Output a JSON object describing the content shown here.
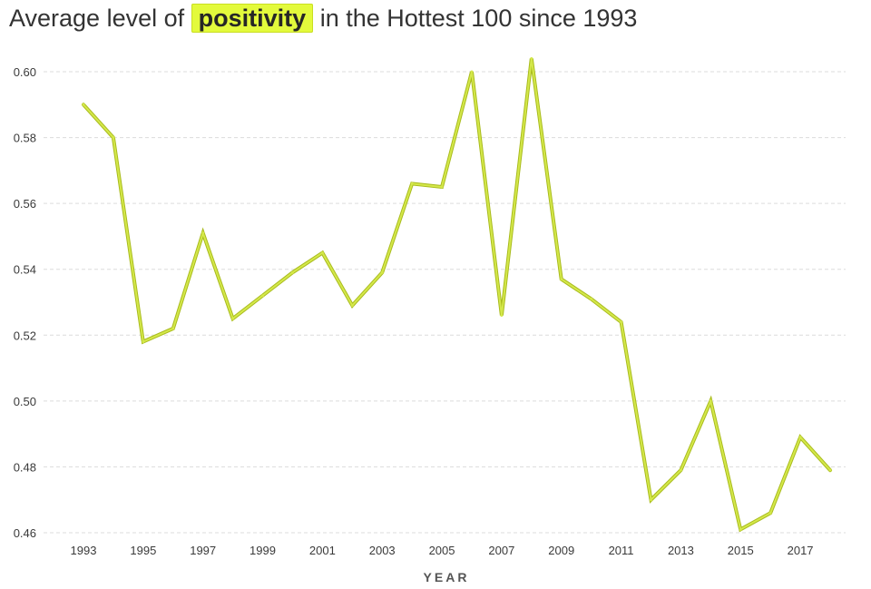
{
  "title": {
    "prefix": "Average level of",
    "highlight": "positivity",
    "suffix": "in the Hottest 100 since 1993"
  },
  "colors": {
    "line": "#d4e84a",
    "line_edge": "#a9bb1d",
    "highlight": "#e3fa3c",
    "grid": "#dcdcdc"
  },
  "chart_data": {
    "type": "line",
    "title": "Average level of positivity in the Hottest 100 since 1993",
    "xlabel": "YEAR",
    "ylabel": "",
    "xlim": [
      1992.5,
      2018.5
    ],
    "ylim": [
      0.46,
      0.605
    ],
    "x_ticks": [
      1993,
      1995,
      1997,
      1999,
      2001,
      2003,
      2005,
      2007,
      2009,
      2011,
      2013,
      2015,
      2017
    ],
    "y_ticks": [
      0.46,
      0.48,
      0.5,
      0.52,
      0.54,
      0.56,
      0.58,
      0.6
    ],
    "y_tick_labels": [
      "0.46",
      "0.48",
      "0.50",
      "0.52",
      "0.54",
      "0.56",
      "0.58",
      "0.60"
    ],
    "grid": "horizontal dashed",
    "series": [
      {
        "x": [
          1993,
          1994,
          1995,
          1996,
          1997,
          1998,
          1999,
          2000,
          2001,
          2002,
          2003,
          2004,
          2005,
          2006,
          2007,
          2008,
          2009,
          2010,
          2011,
          2012,
          2013,
          2014,
          2015,
          2016,
          2017,
          2018
        ],
        "values": [
          0.59,
          0.58,
          0.518,
          0.522,
          0.551,
          0.525,
          0.532,
          0.539,
          0.545,
          0.529,
          0.539,
          0.566,
          0.565,
          0.6,
          0.526,
          0.604,
          0.537,
          0.531,
          0.524,
          0.47,
          0.479,
          0.5,
          0.461,
          0.466,
          0.489,
          0.479
        ]
      }
    ]
  }
}
